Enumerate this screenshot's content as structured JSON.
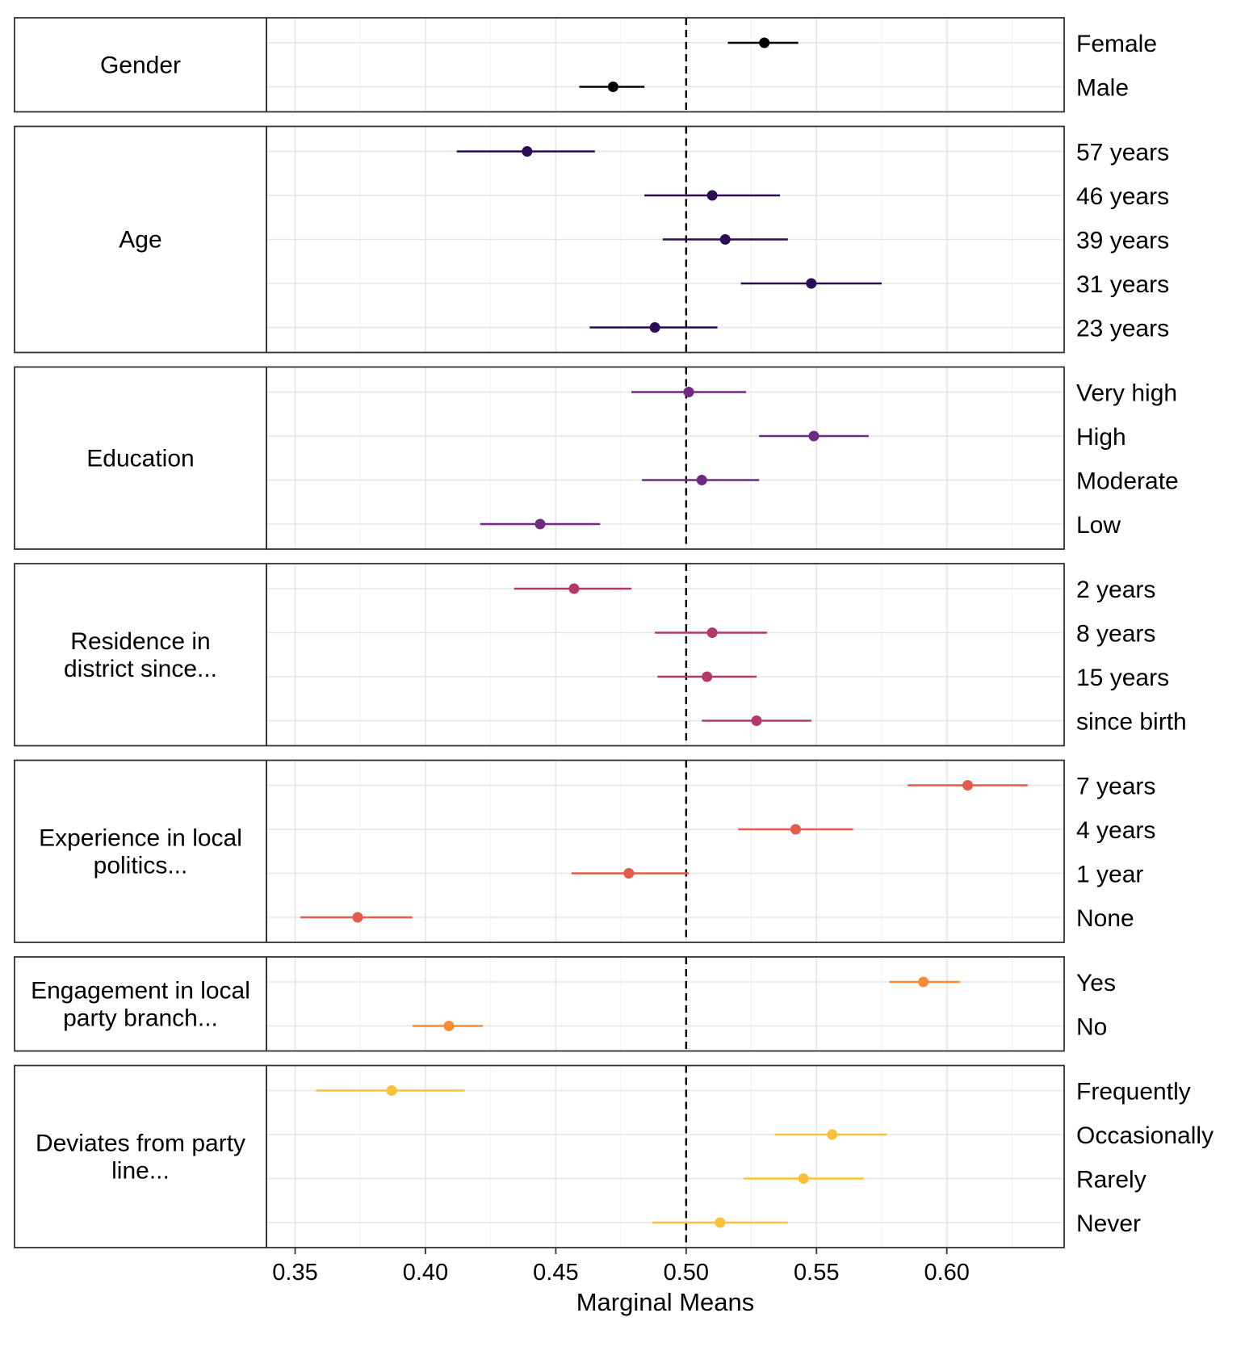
{
  "chart_data": {
    "type": "scatter",
    "xlabel": "Marginal Means",
    "xlim": [
      0.339,
      0.645
    ],
    "x_ticks": [
      "0.35",
      "0.40",
      "0.45",
      "0.50",
      "0.55",
      "0.60"
    ],
    "reference_line": 0.5,
    "grid": true,
    "panels": [
      {
        "label": "Gender",
        "color": "#000004",
        "levels": [
          {
            "name": "Female",
            "estimate": 0.53,
            "lower": 0.516,
            "upper": 0.543
          },
          {
            "name": "Male",
            "estimate": 0.472,
            "lower": 0.459,
            "upper": 0.484
          }
        ]
      },
      {
        "label": "Age",
        "color": "#2c0c54",
        "levels": [
          {
            "name": "57 years",
            "estimate": 0.439,
            "lower": 0.412,
            "upper": 0.465
          },
          {
            "name": "46 years",
            "estimate": 0.51,
            "lower": 0.484,
            "upper": 0.536
          },
          {
            "name": "39 years",
            "estimate": 0.515,
            "lower": 0.491,
            "upper": 0.539
          },
          {
            "name": "31 years",
            "estimate": 0.548,
            "lower": 0.521,
            "upper": 0.575
          },
          {
            "name": "23 years",
            "estimate": 0.488,
            "lower": 0.463,
            "upper": 0.512
          }
        ]
      },
      {
        "label": "Education",
        "color": "#6e2a82",
        "levels": [
          {
            "name": "Very high",
            "estimate": 0.501,
            "lower": 0.479,
            "upper": 0.523
          },
          {
            "name": "High",
            "estimate": 0.549,
            "lower": 0.528,
            "upper": 0.57
          },
          {
            "name": "Moderate",
            "estimate": 0.506,
            "lower": 0.483,
            "upper": 0.528
          },
          {
            "name": "Low",
            "estimate": 0.444,
            "lower": 0.421,
            "upper": 0.467
          }
        ]
      },
      {
        "label": "Residence in district since...",
        "color": "#b5386a",
        "levels": [
          {
            "name": "2 years",
            "estimate": 0.457,
            "lower": 0.434,
            "upper": 0.479
          },
          {
            "name": "8 years",
            "estimate": 0.51,
            "lower": 0.488,
            "upper": 0.531
          },
          {
            "name": "15 years",
            "estimate": 0.508,
            "lower": 0.489,
            "upper": 0.527
          },
          {
            "name": "since birth",
            "estimate": 0.527,
            "lower": 0.506,
            "upper": 0.548
          }
        ]
      },
      {
        "label": "Experience in local politics...",
        "color": "#e45a4b",
        "levels": [
          {
            "name": "7 years",
            "estimate": 0.608,
            "lower": 0.585,
            "upper": 0.631
          },
          {
            "name": "4 years",
            "estimate": 0.542,
            "lower": 0.52,
            "upper": 0.564
          },
          {
            "name": "1 year",
            "estimate": 0.478,
            "lower": 0.456,
            "upper": 0.501
          },
          {
            "name": "None",
            "estimate": 0.374,
            "lower": 0.352,
            "upper": 0.395
          }
        ]
      },
      {
        "label": "Engagement in local party branch...",
        "color": "#fb8b35",
        "levels": [
          {
            "name": "Yes",
            "estimate": 0.591,
            "lower": 0.578,
            "upper": 0.605
          },
          {
            "name": "No",
            "estimate": 0.409,
            "lower": 0.395,
            "upper": 0.422
          }
        ]
      },
      {
        "label": "Deviates from party line...",
        "color": "#fbc03c",
        "levels": [
          {
            "name": "Frequently",
            "estimate": 0.387,
            "lower": 0.358,
            "upper": 0.415
          },
          {
            "name": "Occasionally",
            "estimate": 0.556,
            "lower": 0.534,
            "upper": 0.577
          },
          {
            "name": "Rarely",
            "estimate": 0.545,
            "lower": 0.522,
            "upper": 0.568
          },
          {
            "name": "Never",
            "estimate": 0.513,
            "lower": 0.487,
            "upper": 0.539
          }
        ]
      }
    ]
  }
}
